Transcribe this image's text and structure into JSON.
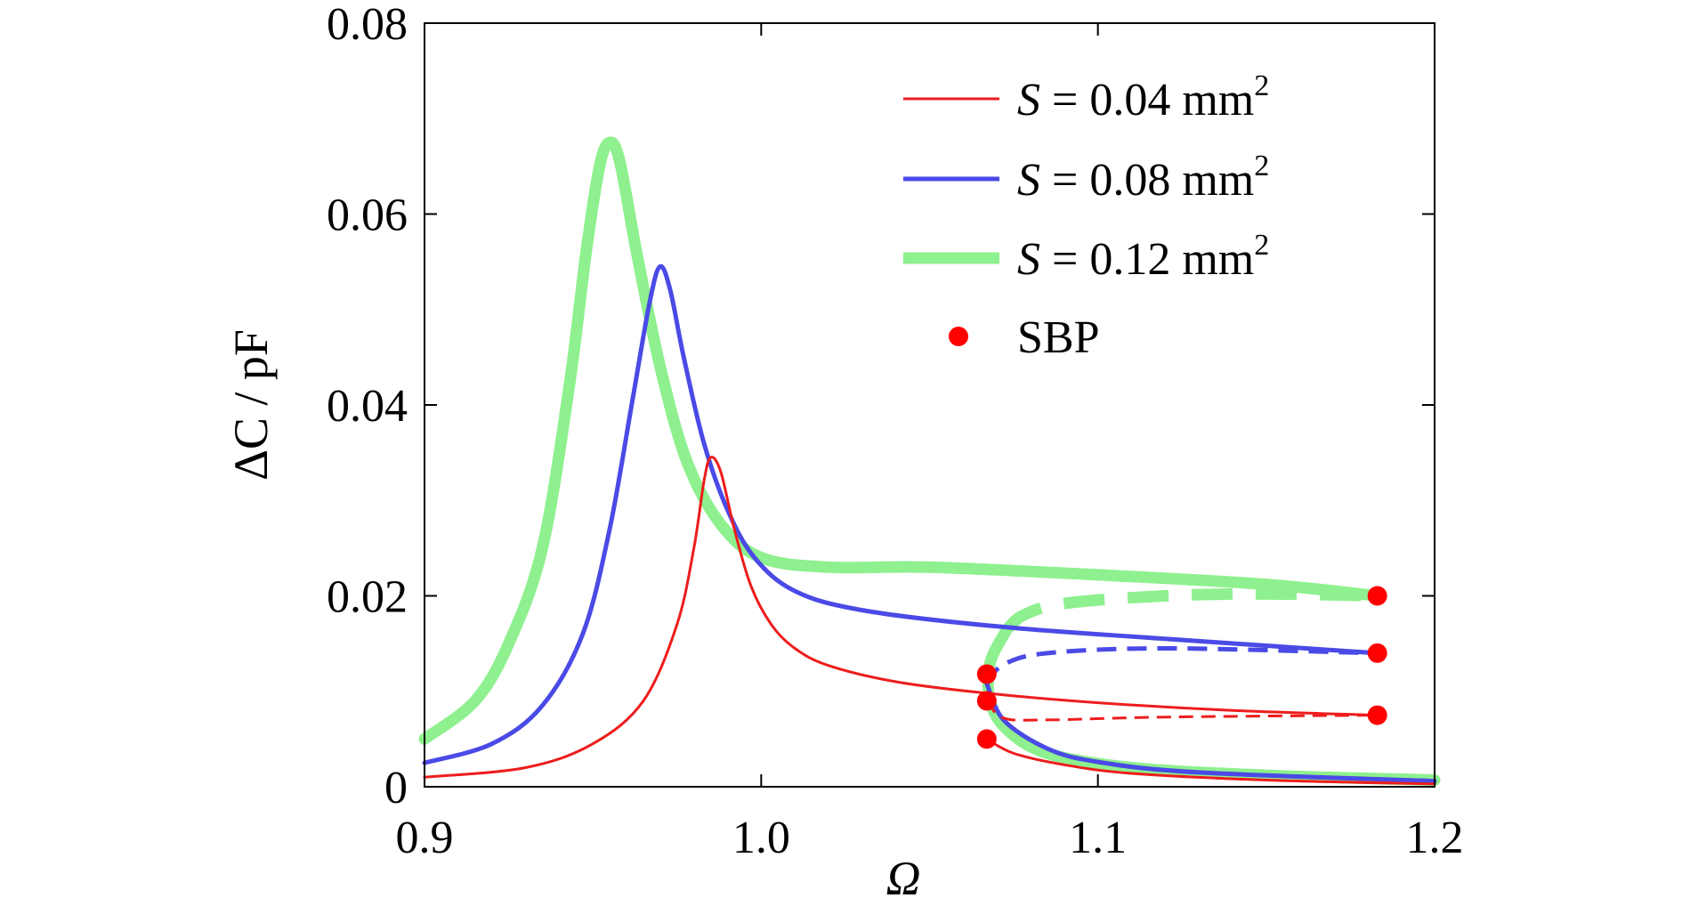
{
  "chart_data": {
    "type": "line",
    "xlabel": "Ω",
    "ylabel": "ΔC / pF",
    "xlim": [
      0.9,
      1.2
    ],
    "ylim": [
      0,
      0.08
    ],
    "xticks": [
      "0.9",
      "1.0",
      "1.1",
      "1.2"
    ],
    "yticks": [
      "0",
      "0.02",
      "0.04",
      "0.06",
      "0.08"
    ],
    "grid": false,
    "legend_position": "top-right",
    "legend": [
      {
        "var": "S",
        "text": " = 0.04 mm",
        "sup": "2",
        "color": "#ee1c1c"
      },
      {
        "var": "S",
        "text": " = 0.08 mm",
        "sup": "2",
        "color": "#4a4ae6"
      },
      {
        "var": "S",
        "text": " = 0.12 mm",
        "sup": "2",
        "color": "#8ef08e"
      },
      {
        "text": "SBP",
        "color": "#ff0000"
      }
    ],
    "series": [
      {
        "color": "#ee1c1c",
        "stable_upper": [
          [
            0.9,
            0.001
          ],
          [
            0.93,
            0.002
          ],
          [
            0.95,
            0.0045
          ],
          [
            0.965,
            0.009
          ],
          [
            0.975,
            0.017
          ],
          [
            0.98,
            0.025
          ],
          [
            0.983,
            0.032
          ],
          [
            0.985,
            0.0345
          ],
          [
            0.988,
            0.033
          ],
          [
            0.992,
            0.027
          ],
          [
            0.997,
            0.021
          ],
          [
            1.003,
            0.017
          ],
          [
            1.01,
            0.0145
          ],
          [
            1.02,
            0.0127
          ],
          [
            1.04,
            0.011
          ],
          [
            1.067,
            0.0098
          ],
          [
            1.1,
            0.0088
          ],
          [
            1.14,
            0.008
          ],
          [
            1.183,
            0.0075
          ]
        ],
        "unstable": [
          [
            1.067,
            0.009
          ],
          [
            1.072,
            0.0072
          ],
          [
            1.085,
            0.007
          ],
          [
            1.12,
            0.0073
          ],
          [
            1.183,
            0.0075
          ]
        ],
        "stable_lower": [
          [
            1.067,
            0.005
          ],
          [
            1.075,
            0.0035
          ],
          [
            1.09,
            0.0023
          ],
          [
            1.11,
            0.0014
          ],
          [
            1.15,
            0.0007
          ],
          [
            1.2,
            0.0003
          ]
        ]
      },
      {
        "color": "#4a4ae6",
        "stable_upper": [
          [
            0.9,
            0.0025
          ],
          [
            0.92,
            0.0045
          ],
          [
            0.935,
            0.0085
          ],
          [
            0.947,
            0.016
          ],
          [
            0.955,
            0.027
          ],
          [
            0.962,
            0.041
          ],
          [
            0.967,
            0.051
          ],
          [
            0.97,
            0.0545
          ],
          [
            0.973,
            0.052
          ],
          [
            0.977,
            0.045
          ],
          [
            0.983,
            0.036
          ],
          [
            0.99,
            0.029
          ],
          [
            0.998,
            0.024
          ],
          [
            1.01,
            0.0205
          ],
          [
            1.03,
            0.0185
          ],
          [
            1.07,
            0.0168
          ],
          [
            1.12,
            0.0155
          ],
          [
            1.183,
            0.014
          ]
        ],
        "unstable": [
          [
            1.067,
            0.0108
          ],
          [
            1.072,
            0.0128
          ],
          [
            1.085,
            0.014
          ],
          [
            1.12,
            0.0145
          ],
          [
            1.183,
            0.014
          ]
        ],
        "stable_lower": [
          [
            1.067,
            0.0108
          ],
          [
            1.072,
            0.007
          ],
          [
            1.085,
            0.004
          ],
          [
            1.1,
            0.0026
          ],
          [
            1.13,
            0.0015
          ],
          [
            1.2,
            0.0006
          ]
        ]
      },
      {
        "color": "#8ef08e",
        "stable_upper": [
          [
            0.9,
            0.005
          ],
          [
            0.915,
            0.009
          ],
          [
            0.925,
            0.015
          ],
          [
            0.935,
            0.025
          ],
          [
            0.943,
            0.042
          ],
          [
            0.948,
            0.056
          ],
          [
            0.952,
            0.065
          ],
          [
            0.955,
            0.0675
          ],
          [
            0.958,
            0.0655
          ],
          [
            0.963,
            0.056
          ],
          [
            0.97,
            0.044
          ],
          [
            0.978,
            0.034
          ],
          [
            0.988,
            0.0275
          ],
          [
            1.0,
            0.024
          ],
          [
            1.02,
            0.023
          ],
          [
            1.05,
            0.023
          ],
          [
            1.1,
            0.0222
          ],
          [
            1.15,
            0.0212
          ],
          [
            1.183,
            0.02
          ]
        ],
        "unstable": [
          [
            1.073,
            0.0165
          ],
          [
            1.078,
            0.018
          ],
          [
            1.09,
            0.0192
          ],
          [
            1.12,
            0.02
          ],
          [
            1.15,
            0.0202
          ],
          [
            1.183,
            0.02
          ]
        ],
        "stable_lower": [
          [
            1.073,
            0.0165
          ],
          [
            1.068,
            0.013
          ],
          [
            1.068,
            0.009
          ],
          [
            1.073,
            0.006
          ],
          [
            1.085,
            0.0035
          ],
          [
            1.11,
            0.002
          ],
          [
            1.15,
            0.0012
          ],
          [
            1.2,
            0.0007
          ]
        ]
      }
    ],
    "sbp_points": [
      [
        1.067,
        0.0118
      ],
      [
        1.067,
        0.009
      ],
      [
        1.067,
        0.005
      ],
      [
        1.183,
        0.02
      ],
      [
        1.183,
        0.014
      ],
      [
        1.183,
        0.0075
      ]
    ]
  }
}
